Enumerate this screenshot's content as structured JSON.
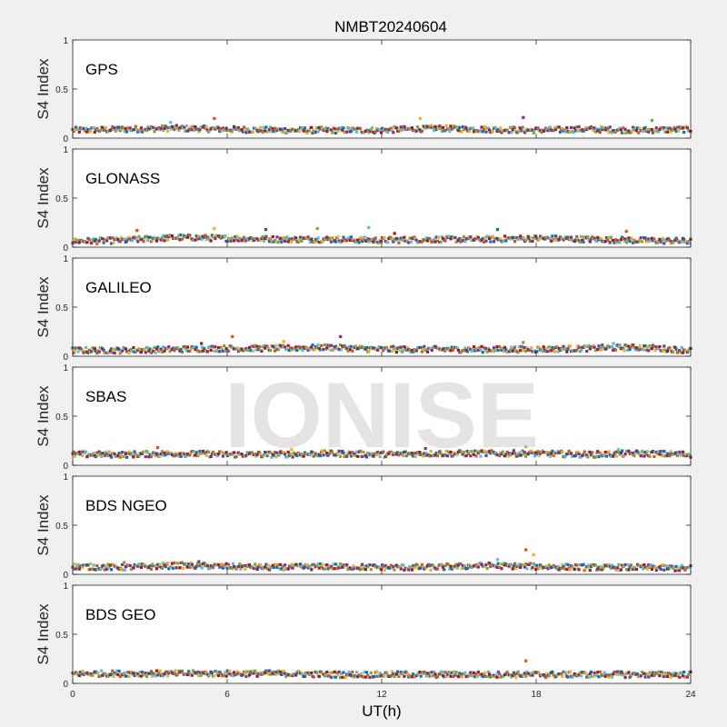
{
  "figure": {
    "title": "NMBT20240604",
    "xlabel": "UT(h)",
    "ylabel": "S4 Index",
    "watermark": "IONISE",
    "xticks": [
      "0",
      "6",
      "12",
      "18",
      "24"
    ],
    "yticks": [
      "0",
      "0.5",
      "1"
    ]
  },
  "palette": [
    "#0072BD",
    "#D95319",
    "#EDB120",
    "#7E2F8E",
    "#77AC30",
    "#4DBEEE",
    "#A2142F"
  ],
  "chart_data": [
    {
      "type": "scatter",
      "label": "GPS",
      "xlim": [
        0,
        24
      ],
      "ylim": [
        0,
        1
      ],
      "grid": false,
      "baseline": {
        "x": [
          0,
          2,
          4,
          6,
          8,
          10,
          12,
          14,
          16,
          18,
          20,
          22,
          24
        ],
        "y": [
          0.08,
          0.09,
          0.1,
          0.09,
          0.08,
          0.08,
          0.08,
          0.1,
          0.09,
          0.08,
          0.09,
          0.08,
          0.09
        ]
      },
      "spikes": [
        [
          5.5,
          0.2
        ],
        [
          13.5,
          0.2
        ],
        [
          17.5,
          0.21
        ],
        [
          22.5,
          0.18
        ],
        [
          3.8,
          0.16
        ]
      ]
    },
    {
      "type": "scatter",
      "label": "GLONASS",
      "xlim": [
        0,
        24
      ],
      "ylim": [
        0,
        1
      ],
      "grid": false,
      "baseline": {
        "x": [
          0,
          2,
          4,
          6,
          8,
          10,
          12,
          14,
          16,
          18,
          20,
          22,
          24
        ],
        "y": [
          0.06,
          0.07,
          0.1,
          0.09,
          0.08,
          0.08,
          0.07,
          0.08,
          0.08,
          0.09,
          0.08,
          0.07,
          0.06
        ]
      },
      "spikes": [
        [
          2.5,
          0.17
        ],
        [
          5.5,
          0.19
        ],
        [
          7.5,
          0.18
        ],
        [
          9.5,
          0.19
        ],
        [
          11.5,
          0.2
        ],
        [
          12.5,
          0.14
        ],
        [
          16.5,
          0.18
        ],
        [
          21.5,
          0.16
        ]
      ]
    },
    {
      "type": "scatter",
      "label": "GALILEO",
      "xlim": [
        0,
        24
      ],
      "ylim": [
        0,
        1
      ],
      "grid": false,
      "baseline": {
        "x": [
          0,
          2,
          4,
          6,
          8,
          10,
          12,
          14,
          16,
          18,
          20,
          22,
          24
        ],
        "y": [
          0.06,
          0.06,
          0.07,
          0.08,
          0.08,
          0.09,
          0.07,
          0.07,
          0.07,
          0.07,
          0.08,
          0.09,
          0.06
        ]
      },
      "spikes": [
        [
          6.2,
          0.2
        ],
        [
          8.2,
          0.15
        ],
        [
          10.4,
          0.2
        ],
        [
          17.5,
          0.14
        ],
        [
          21,
          0.13
        ],
        [
          5,
          0.13
        ]
      ]
    },
    {
      "type": "scatter",
      "label": "SBAS",
      "xlim": [
        0,
        24
      ],
      "ylim": [
        0,
        1
      ],
      "grid": false,
      "baseline": {
        "x": [
          0,
          2,
          4,
          6,
          8,
          10,
          12,
          14,
          16,
          18,
          20,
          22,
          24
        ],
        "y": [
          0.11,
          0.11,
          0.12,
          0.11,
          0.11,
          0.12,
          0.11,
          0.12,
          0.12,
          0.12,
          0.11,
          0.12,
          0.11
        ]
      },
      "spikes": [
        [
          3.3,
          0.18
        ],
        [
          8.5,
          0.16
        ],
        [
          13.7,
          0.17
        ],
        [
          17.6,
          0.19
        ],
        [
          21.2,
          0.16
        ]
      ]
    },
    {
      "type": "scatter",
      "label": "BDS NGEO",
      "xlim": [
        0,
        24
      ],
      "ylim": [
        0,
        1
      ],
      "grid": false,
      "baseline": {
        "x": [
          0,
          2,
          4,
          6,
          8,
          10,
          12,
          14,
          16,
          18,
          20,
          22,
          24
        ],
        "y": [
          0.08,
          0.07,
          0.09,
          0.08,
          0.07,
          0.08,
          0.07,
          0.07,
          0.09,
          0.08,
          0.07,
          0.07,
          0.06
        ]
      },
      "spikes": [
        [
          17.6,
          0.25
        ],
        [
          17.9,
          0.2
        ],
        [
          4.9,
          0.13
        ],
        [
          2,
          0.12
        ],
        [
          16.5,
          0.15
        ]
      ]
    },
    {
      "type": "scatter",
      "label": "BDS GEO",
      "xlim": [
        0,
        24
      ],
      "ylim": [
        0,
        1
      ],
      "grid": false,
      "baseline": {
        "x": [
          0,
          2,
          4,
          6,
          8,
          10,
          12,
          14,
          16,
          18,
          20,
          22,
          24
        ],
        "y": [
          0.1,
          0.1,
          0.1,
          0.1,
          0.1,
          0.09,
          0.09,
          0.09,
          0.09,
          0.09,
          0.09,
          0.09,
          0.09
        ]
      },
      "spikes": [
        [
          17.6,
          0.23
        ]
      ]
    }
  ]
}
